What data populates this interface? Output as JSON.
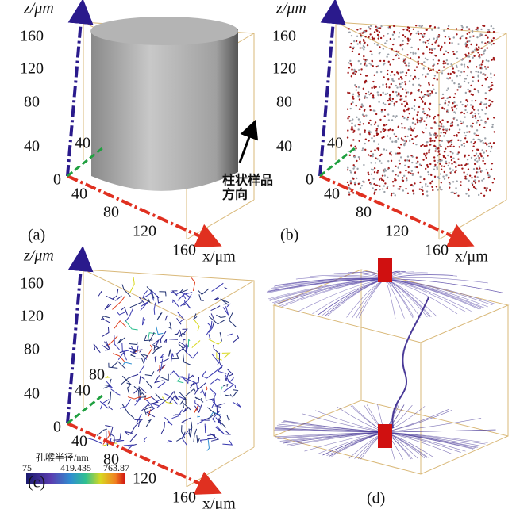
{
  "panels": [
    {
      "label": "(a)",
      "z_label": "z/μm",
      "x_label": "x/μm",
      "origin": 0,
      "z_ticks": [
        40,
        80,
        120,
        160
      ],
      "x_ticks": [
        40,
        80,
        120,
        160
      ],
      "y_ticks": [
        40
      ],
      "annotation": [
        "柱状样品",
        "方向"
      ]
    },
    {
      "label": "(b)",
      "z_label": "z/μm",
      "x_label": "x/μm",
      "origin": 0,
      "z_ticks": [
        40,
        80,
        120,
        160
      ],
      "x_ticks": [
        40,
        80,
        120,
        160
      ],
      "y_ticks": [
        40
      ]
    },
    {
      "label": "(c)",
      "z_label": "z/μm",
      "x_label": "x/μm",
      "origin": 0,
      "z_ticks": [
        40,
        80,
        120,
        160
      ],
      "x_ticks": [
        40,
        80,
        120,
        160
      ],
      "y_ticks": [
        40,
        80
      ]
    },
    {
      "label": "(d)"
    }
  ],
  "colorbar": {
    "title": "孔喉半径/nm",
    "ticks": [
      75,
      419.435,
      763.87
    ]
  }
}
